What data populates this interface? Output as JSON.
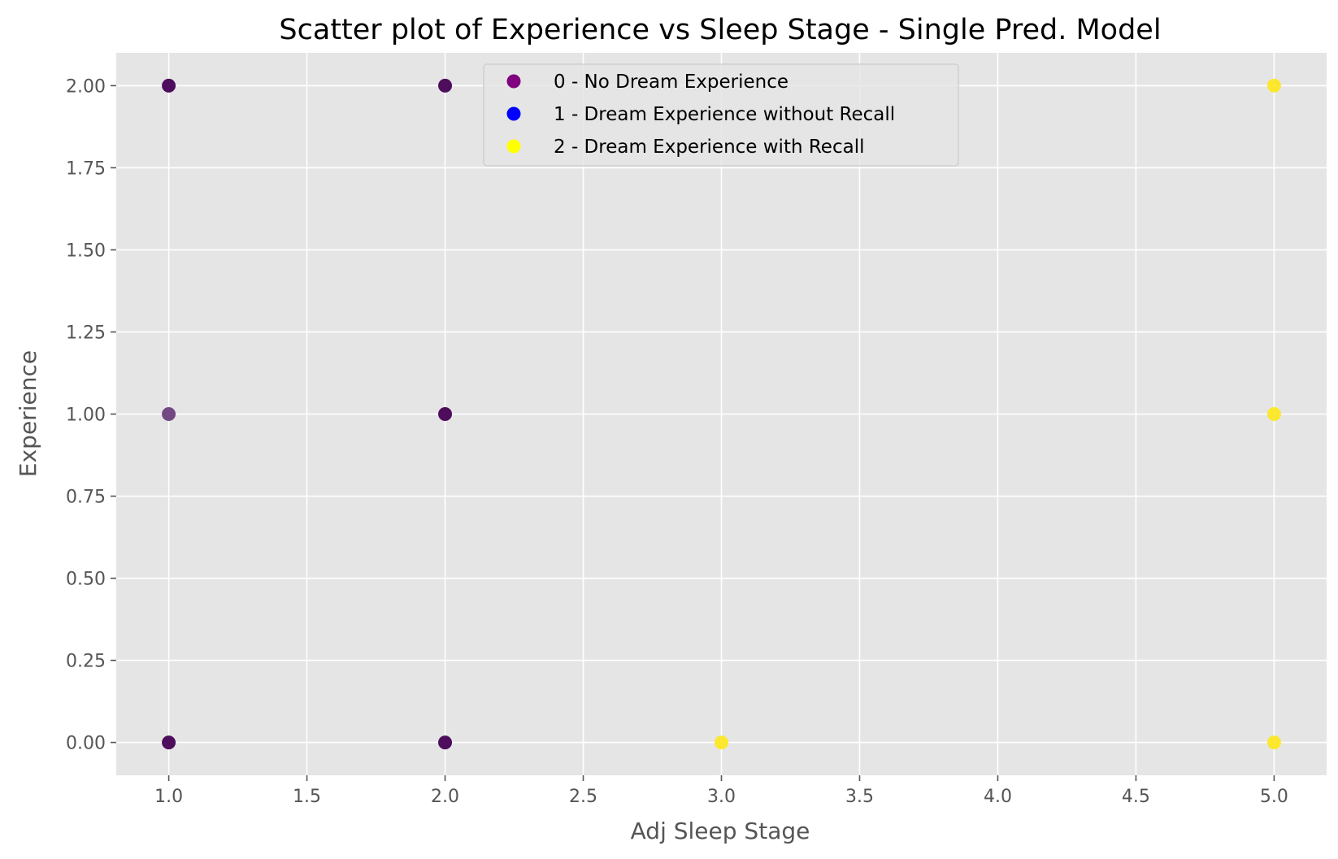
{
  "chart_data": {
    "type": "scatter",
    "title": "Scatter plot of Experience vs Sleep Stage - Single Pred. Model",
    "xlabel": "Adj Sleep Stage",
    "ylabel": "Experience",
    "xlim": [
      0.81,
      5.19
    ],
    "ylim": [
      -0.1,
      2.1
    ],
    "x_ticks": [
      "1.0",
      "1.5",
      "2.0",
      "2.5",
      "3.0",
      "3.5",
      "4.0",
      "4.5",
      "5.0"
    ],
    "y_ticks": [
      "0.00",
      "0.25",
      "0.50",
      "0.75",
      "1.00",
      "1.25",
      "1.50",
      "1.75",
      "2.00"
    ],
    "grid": true,
    "background_color": "#e5e5e5",
    "legend": {
      "placement": "upper-center",
      "entries": [
        {
          "label": "0 - No Dream Experience",
          "color": "#800080"
        },
        {
          "label": "1 - Dream Experience without Recall",
          "color": "#0000ff"
        },
        {
          "label": "2 - Dream Experience with Recall",
          "color": "#ffff00"
        }
      ]
    },
    "points": [
      {
        "x": 1,
        "y": 2,
        "color": "#440154"
      },
      {
        "x": 1,
        "y": 1,
        "color": "#6d3f7c"
      },
      {
        "x": 1,
        "y": 0,
        "color": "#440154"
      },
      {
        "x": 2,
        "y": 2,
        "color": "#440154"
      },
      {
        "x": 2,
        "y": 1,
        "color": "#440154"
      },
      {
        "x": 2,
        "y": 0,
        "color": "#440154"
      },
      {
        "x": 3,
        "y": 0,
        "color": "#fde725"
      },
      {
        "x": 5,
        "y": 2,
        "color": "#fde725"
      },
      {
        "x": 5,
        "y": 1,
        "color": "#fde725"
      },
      {
        "x": 5,
        "y": 0,
        "color": "#fde725"
      }
    ]
  }
}
